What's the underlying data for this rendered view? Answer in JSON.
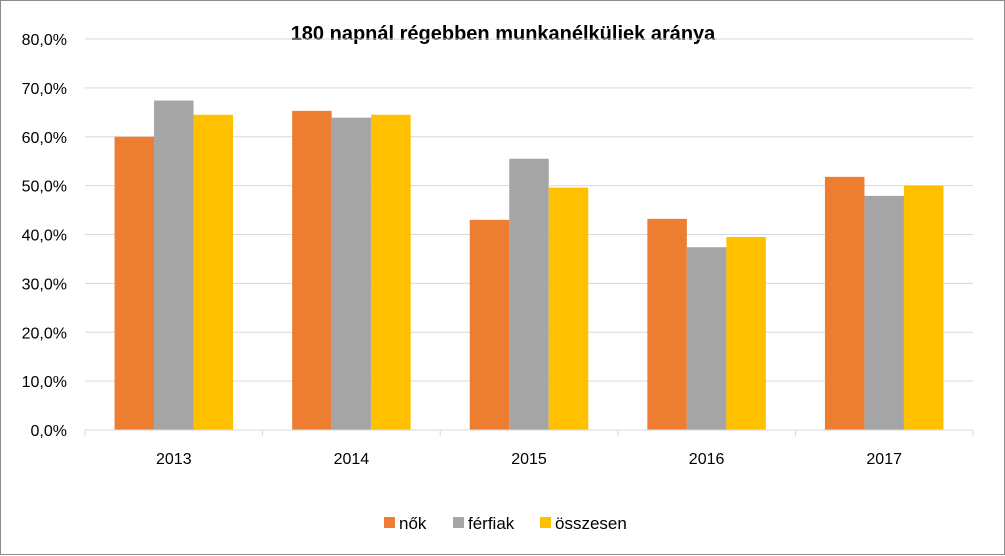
{
  "chart_data": {
    "type": "bar",
    "title": "180 napnál régebben munkanélküliek aránya",
    "categories": [
      "2013",
      "2014",
      "2015",
      "2016",
      "2017"
    ],
    "series": [
      {
        "name": "nők",
        "color": "#ED7D31",
        "values": [
          60.0,
          65.3,
          43.0,
          43.2,
          51.8
        ]
      },
      {
        "name": "férfiak",
        "color": "#A5A5A5",
        "values": [
          67.4,
          63.9,
          55.5,
          37.4,
          47.9
        ]
      },
      {
        "name": "összesen",
        "color": "#FFC000",
        "values": [
          64.5,
          64.5,
          49.6,
          39.5,
          50.0
        ]
      }
    ],
    "y_ticks": [
      "0,0%",
      "10,0%",
      "20,0%",
      "30,0%",
      "40,0%",
      "50,0%",
      "60,0%",
      "70,0%",
      "80,0%"
    ],
    "ylim": [
      0,
      80
    ],
    "xlabel": "",
    "ylabel": "",
    "grid": true,
    "legend_position": "bottom"
  }
}
